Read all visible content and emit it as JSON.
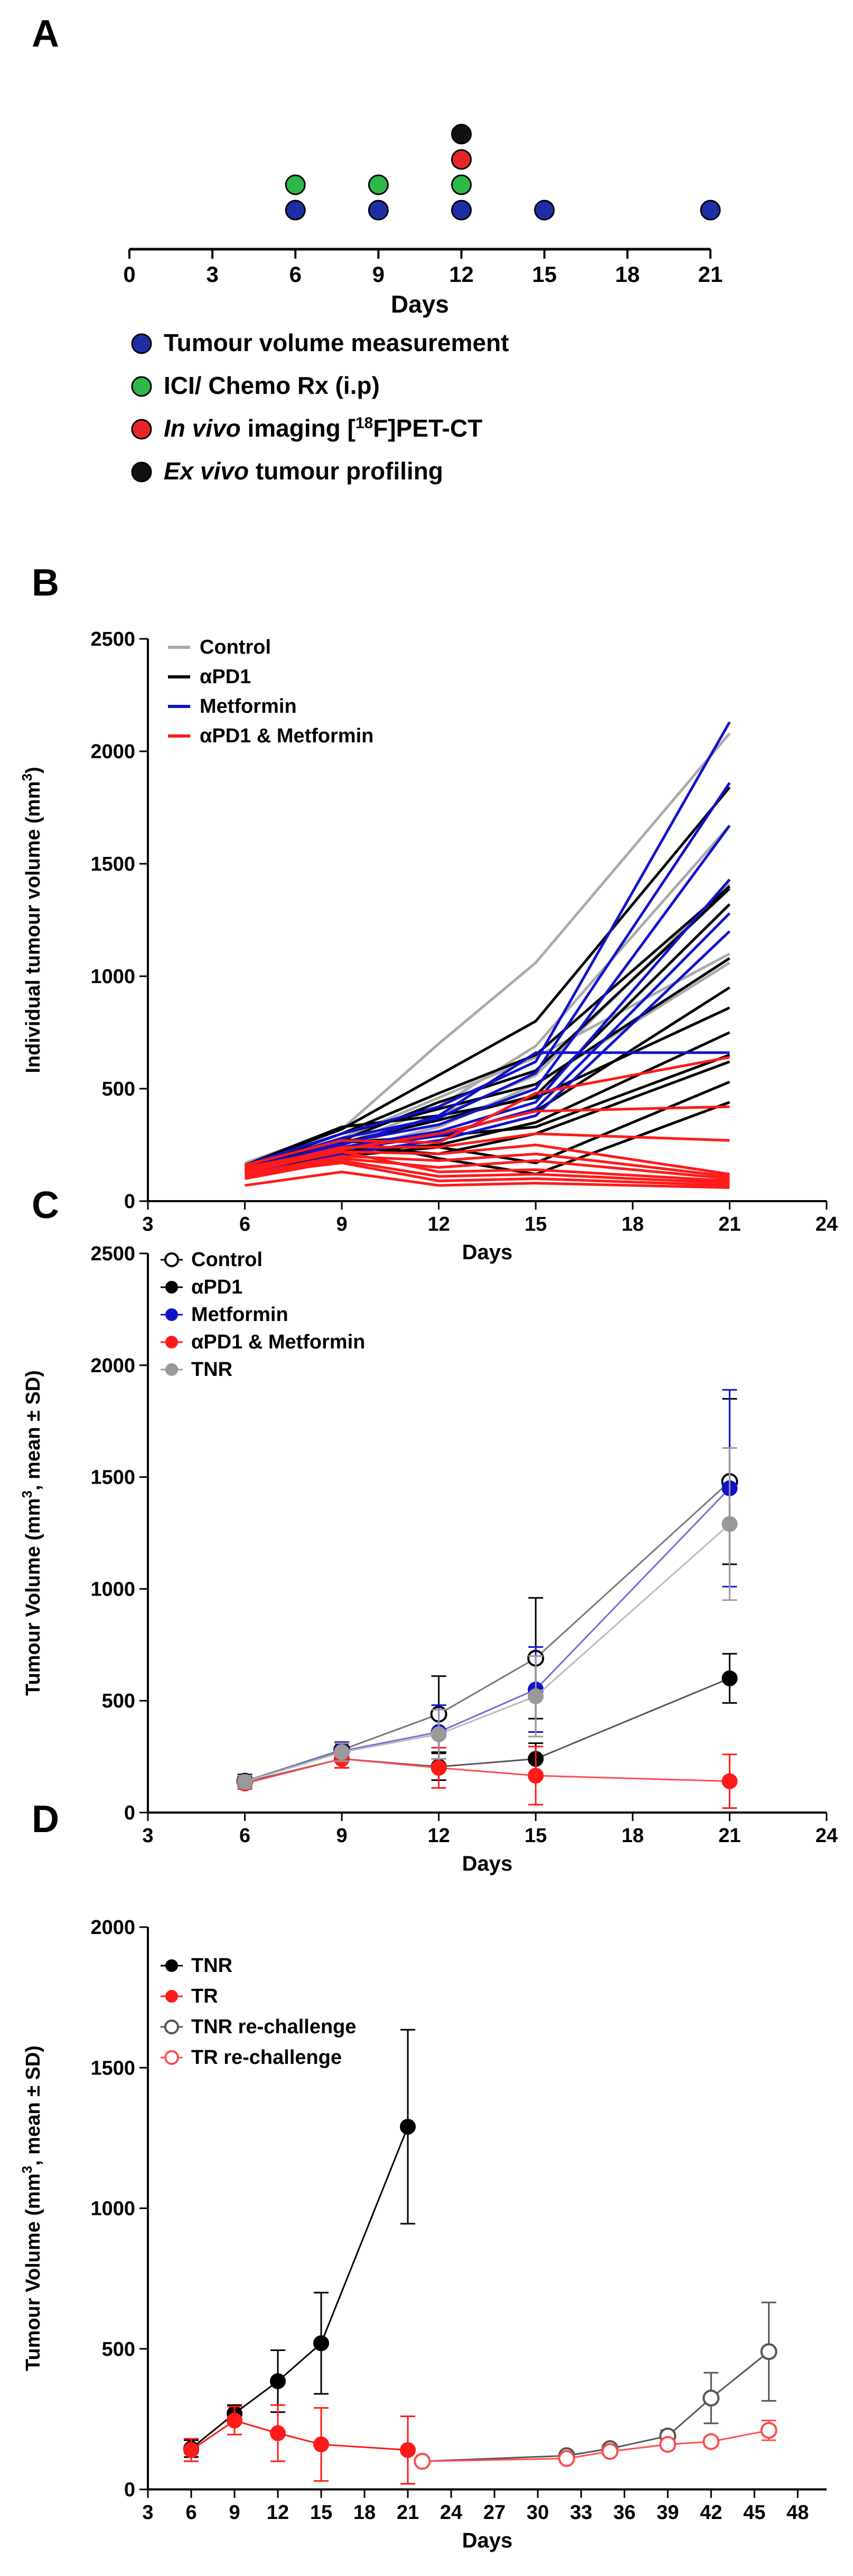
{
  "colors": {
    "control": "#aaaaaa",
    "apd1": "#000000",
    "metformin": "#1111cc",
    "combo": "#ff1a1a",
    "tnr": "#999999",
    "timeline_blue": "#1e2fa6",
    "timeline_green": "#2fb84a",
    "timeline_red": "#e8252b",
    "timeline_black": "#111111"
  },
  "chart_data": [
    {
      "panel": "A",
      "type": "timeline",
      "xlabel": "Days",
      "xlim": [
        0,
        21
      ],
      "ticks": [
        "0",
        "3",
        "6",
        "9",
        "12",
        "15",
        "18",
        "21"
      ],
      "tick_values": [
        0,
        3,
        6,
        9,
        12,
        15,
        18,
        21
      ],
      "events": [
        {
          "day": 6,
          "markers": [
            "blue",
            "green"
          ]
        },
        {
          "day": 9,
          "markers": [
            "blue",
            "green"
          ]
        },
        {
          "day": 12,
          "markers": [
            "blue",
            "green",
            "red",
            "black"
          ]
        },
        {
          "day": 15,
          "markers": [
            "blue"
          ]
        },
        {
          "day": 21,
          "markers": [
            "blue"
          ]
        }
      ],
      "legend": [
        {
          "color": "blue",
          "parts": [
            {
              "text": "Tumour volume measurement",
              "style": "normal"
            }
          ]
        },
        {
          "color": "green",
          "parts": [
            {
              "text": "ICI/ Chemo Rx (i.p)",
              "style": "normal"
            }
          ]
        },
        {
          "color": "red",
          "parts": [
            {
              "text": "In vivo",
              "style": "italic"
            },
            {
              "text": " imaging [",
              "style": "normal"
            },
            {
              "text": "18",
              "style": "sup"
            },
            {
              "text": "F]PET-CT",
              "style": "normal"
            }
          ]
        },
        {
          "color": "black",
          "parts": [
            {
              "text": "Ex vivo",
              "style": "italic"
            },
            {
              "text": " tumour profiling",
              "style": "normal"
            }
          ]
        }
      ]
    },
    {
      "panel": "B",
      "type": "line",
      "xlabel": "Days",
      "ylabel": "Individual tumour volume (mm",
      "ylabel_sup": "3",
      "ylabel_end": ")",
      "xlim": [
        3,
        24
      ],
      "ylim": [
        0,
        2500
      ],
      "xticks": [
        3,
        6,
        9,
        12,
        15,
        18,
        21,
        24
      ],
      "yticks": [
        0,
        500,
        1000,
        1500,
        2000,
        2500
      ],
      "x": [
        6,
        9,
        12,
        15,
        21
      ],
      "legend": [
        {
          "label": "Control",
          "color": "control"
        },
        {
          "label": "αPD1",
          "color": "apd1"
        },
        {
          "label": "Metformin",
          "color": "metformin"
        },
        {
          "label": "αPD1 & Metformin",
          "color": "combo"
        }
      ],
      "series": [
        {
          "group": "control",
          "values": [
            170,
            320,
            700,
            1060,
            2080
          ]
        },
        {
          "group": "control",
          "values": [
            140,
            250,
            420,
            690,
            1670
          ]
        },
        {
          "group": "control",
          "values": [
            130,
            230,
            380,
            560,
            1410
          ]
        },
        {
          "group": "control",
          "values": [
            150,
            280,
            460,
            640,
            1100
          ]
        },
        {
          "group": "control",
          "values": [
            120,
            220,
            330,
            520,
            1060
          ]
        },
        {
          "group": "apd1",
          "values": [
            160,
            320,
            560,
            800,
            1840
          ]
        },
        {
          "group": "apd1",
          "values": [
            150,
            300,
            480,
            650,
            1400
          ]
        },
        {
          "group": "apd1",
          "values": [
            140,
            270,
            440,
            580,
            1390
          ]
        },
        {
          "group": "apd1",
          "values": [
            130,
            260,
            360,
            470,
            1320
          ]
        },
        {
          "group": "apd1",
          "values": [
            150,
            300,
            410,
            520,
            1080
          ]
        },
        {
          "group": "apd1",
          "values": [
            120,
            230,
            300,
            400,
            950
          ]
        },
        {
          "group": "apd1",
          "values": [
            160,
            330,
            380,
            460,
            860
          ]
        },
        {
          "group": "apd1",
          "values": [
            110,
            220,
            250,
            350,
            750
          ]
        },
        {
          "group": "apd1",
          "values": [
            140,
            260,
            290,
            330,
            650
          ]
        },
        {
          "group": "apd1",
          "values": [
            130,
            240,
            210,
            300,
            620
          ]
        },
        {
          "group": "apd1",
          "values": [
            120,
            200,
            240,
            170,
            530
          ]
        },
        {
          "group": "apd1",
          "values": [
            150,
            280,
            190,
            120,
            440
          ]
        },
        {
          "group": "metformin",
          "values": [
            160,
            300,
            420,
            620,
            2130
          ]
        },
        {
          "group": "metformin",
          "values": [
            150,
            280,
            370,
            570,
            1860
          ]
        },
        {
          "group": "metformin",
          "values": [
            140,
            260,
            340,
            500,
            1670
          ]
        },
        {
          "group": "metformin",
          "values": [
            130,
            240,
            310,
            440,
            1430
          ]
        },
        {
          "group": "metformin",
          "values": [
            120,
            230,
            290,
            410,
            1280
          ]
        },
        {
          "group": "metformin",
          "values": [
            110,
            210,
            270,
            380,
            1200
          ]
        },
        {
          "group": "metformin",
          "values": [
            140,
            250,
            380,
            660,
            660
          ]
        },
        {
          "group": "combo",
          "values": [
            160,
            270,
            260,
            480,
            640
          ]
        },
        {
          "group": "combo",
          "values": [
            150,
            230,
            300,
            400,
            420
          ]
        },
        {
          "group": "combo",
          "values": [
            140,
            240,
            240,
            300,
            270
          ]
        },
        {
          "group": "combo",
          "values": [
            130,
            220,
            210,
            250,
            120
          ]
        },
        {
          "group": "combo",
          "values": [
            120,
            200,
            180,
            210,
            110
          ]
        },
        {
          "group": "combo",
          "values": [
            110,
            190,
            150,
            180,
            100
          ]
        },
        {
          "group": "combo",
          "values": [
            140,
            220,
            130,
            140,
            90
          ]
        },
        {
          "group": "combo",
          "values": [
            100,
            180,
            110,
            120,
            80
          ]
        },
        {
          "group": "combo",
          "values": [
            120,
            170,
            90,
            100,
            70
          ]
        },
        {
          "group": "combo",
          "values": [
            70,
            130,
            70,
            80,
            60
          ]
        }
      ]
    },
    {
      "panel": "C",
      "type": "line",
      "xlabel": "Days",
      "ylabel": "Tumour Volume (mm",
      "ylabel_sup": "3",
      "ylabel_end": ", mean ± SD)",
      "xlim": [
        3,
        24
      ],
      "ylim": [
        0,
        2500
      ],
      "xticks": [
        3,
        6,
        9,
        12,
        15,
        18,
        21,
        24
      ],
      "yticks": [
        0,
        500,
        1000,
        1500,
        2000,
        2500
      ],
      "legend": [
        {
          "label": "Control",
          "color": "#000000",
          "marker": "open"
        },
        {
          "label": "αPD1",
          "color": "#000000",
          "marker": "filled"
        },
        {
          "label": "Metformin",
          "color": "#1111cc",
          "marker": "filled"
        },
        {
          "label": "αPD1 & Metformin",
          "color": "#ff1a1a",
          "marker": "filled"
        },
        {
          "label": "TNR",
          "color": "#999999",
          "marker": "filled"
        }
      ],
      "series": [
        {
          "name": "Control",
          "color": "#000000",
          "line": "#777777",
          "marker": "open",
          "x": [
            6,
            9,
            12,
            15,
            21
          ],
          "values": [
            140,
            280,
            440,
            690,
            1480
          ],
          "sd": [
            30,
            30,
            170,
            270,
            370
          ]
        },
        {
          "name": "αPD1",
          "color": "#000000",
          "line": "#555555",
          "marker": "filled",
          "x": [
            6,
            9,
            12,
            15,
            21
          ],
          "values": [
            135,
            240,
            205,
            240,
            600
          ],
          "sd": [
            25,
            40,
            60,
            70,
            110
          ]
        },
        {
          "name": "Metformin",
          "color": "#1111cc",
          "line": "#6f6fdc",
          "marker": "filled",
          "x": [
            6,
            9,
            12,
            15,
            21
          ],
          "values": [
            138,
            275,
            360,
            550,
            1450
          ],
          "sd": [
            28,
            40,
            120,
            190,
            440
          ]
        },
        {
          "name": "αPD1 & Metformin",
          "color": "#ff1a1a",
          "line": "#ff4d4d",
          "marker": "filled",
          "x": [
            6,
            9,
            12,
            15,
            21
          ],
          "values": [
            130,
            240,
            200,
            165,
            140
          ],
          "sd": [
            25,
            40,
            90,
            130,
            120
          ]
        },
        {
          "name": "TNR",
          "color": "#999999",
          "line": "#bbbbbb",
          "marker": "filled",
          "x": [
            6,
            9,
            12,
            15,
            21
          ],
          "values": [
            137,
            270,
            350,
            520,
            1290
          ],
          "sd": [
            28,
            40,
            110,
            180,
            340
          ]
        }
      ]
    },
    {
      "panel": "D",
      "type": "line",
      "xlabel": "Days",
      "ylabel": "Tumour Volume (mm",
      "ylabel_sup": "3",
      "ylabel_end": ", mean ± SD)",
      "xlim": [
        3,
        50
      ],
      "ylim": [
        0,
        2000
      ],
      "xticks": [
        3,
        6,
        9,
        12,
        15,
        18,
        21,
        24,
        27,
        30,
        33,
        36,
        39,
        42,
        45,
        48
      ],
      "yticks": [
        0,
        500,
        1000,
        1500,
        2000
      ],
      "legend": [
        {
          "label": "TNR",
          "color": "#000000",
          "marker": "filled"
        },
        {
          "label": "TR",
          "color": "#ff1a1a",
          "marker": "filled"
        },
        {
          "label": "TNR re-challenge",
          "color": "#555555",
          "marker": "open"
        },
        {
          "label": "TR re-challenge",
          "color": "#ff4d4d",
          "marker": "open"
        }
      ],
      "series": [
        {
          "name": "TNR",
          "color": "#000000",
          "line": "#000000",
          "marker": "filled",
          "x": [
            6,
            9,
            12,
            15,
            21
          ],
          "values": [
            145,
            270,
            385,
            520,
            1290
          ],
          "sd": [
            30,
            30,
            110,
            180,
            345
          ]
        },
        {
          "name": "TR",
          "color": "#ff1a1a",
          "line": "#ff1a1a",
          "marker": "filled",
          "x": [
            6,
            9,
            12,
            15,
            21
          ],
          "values": [
            140,
            245,
            200,
            160,
            140
          ],
          "sd": [
            40,
            50,
            100,
            130,
            120
          ]
        },
        {
          "name": "TNR re-challenge",
          "color": "#555555",
          "line": "#555555",
          "marker": "open",
          "x": [
            22,
            32,
            35,
            39,
            42,
            46
          ],
          "values": [
            100,
            120,
            145,
            190,
            325,
            490
          ],
          "sd": [
            8,
            12,
            15,
            20,
            90,
            175
          ]
        },
        {
          "name": "TR re-challenge",
          "color": "#ff4d4d",
          "line": "#ff4d4d",
          "marker": "open",
          "x": [
            22,
            32,
            35,
            39,
            42,
            46
          ],
          "values": [
            100,
            110,
            135,
            160,
            170,
            210
          ],
          "sd": [
            8,
            10,
            12,
            15,
            15,
            35
          ]
        }
      ]
    }
  ],
  "panel_labels": [
    "A",
    "B",
    "C",
    "D"
  ]
}
